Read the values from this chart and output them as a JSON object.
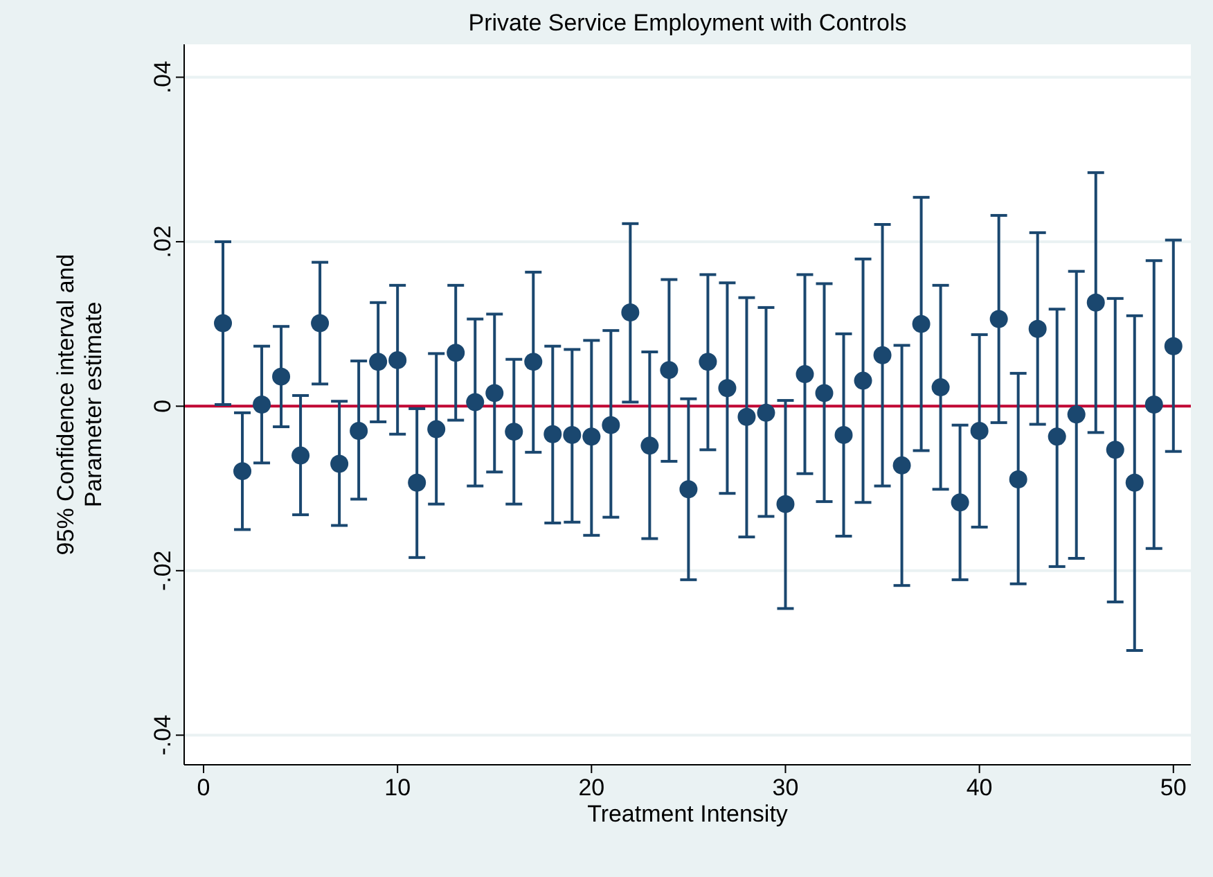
{
  "chart_data": {
    "type": "scatter",
    "title": "Private Service Employment with Controls",
    "xlabel": "Treatment Intensity",
    "ylabel": "95% Confidence interval and\nParameter estimate",
    "x": [
      1,
      2,
      3,
      4,
      5,
      6,
      7,
      8,
      9,
      10,
      11,
      12,
      13,
      14,
      15,
      16,
      17,
      18,
      19,
      20,
      21,
      22,
      23,
      24,
      25,
      26,
      27,
      28,
      29,
      30,
      31,
      32,
      33,
      34,
      35,
      36,
      37,
      38,
      39,
      40,
      41,
      42,
      43,
      44,
      45,
      46,
      47,
      48,
      49,
      50
    ],
    "series": [
      {
        "color": "#1a476f",
        "marker": "circle",
        "values": [
          0.0101,
          -0.0079,
          0.0002,
          0.0036,
          -0.006,
          0.0101,
          -0.007,
          -0.003,
          0.0054,
          0.0056,
          -0.0093,
          -0.0028,
          0.0065,
          0.0005,
          0.0016,
          -0.0031,
          0.0054,
          -0.0034,
          -0.0035,
          -0.0037,
          -0.0023,
          0.0114,
          -0.0048,
          0.0044,
          -0.0101,
          0.0054,
          0.0022,
          -0.0013,
          -0.0008,
          -0.0119,
          0.0039,
          0.0016,
          -0.0035,
          0.0031,
          0.0062,
          -0.0072,
          0.01,
          0.0023,
          -0.0117,
          -0.003,
          0.0106,
          -0.0089,
          0.0094,
          -0.0037,
          -0.001,
          0.0126,
          -0.0053,
          -0.0093,
          0.0002,
          0.0073
        ],
        "errors": [
          [
            0.0002,
            0.02
          ],
          [
            -0.015,
            -0.0008
          ],
          [
            -0.0069,
            0.0073
          ],
          [
            -0.0025,
            0.0097
          ],
          [
            -0.0132,
            0.0013
          ],
          [
            0.0027,
            0.0175
          ],
          [
            -0.0145,
            0.0006
          ],
          [
            -0.0113,
            0.0055
          ],
          [
            -0.0019,
            0.0126
          ],
          [
            -0.0034,
            0.0147
          ],
          [
            -0.0184,
            -0.0003
          ],
          [
            -0.0119,
            0.0064
          ],
          [
            -0.0017,
            0.0147
          ],
          [
            -0.0097,
            0.0106
          ],
          [
            -0.008,
            0.0112
          ],
          [
            -0.0119,
            0.0057
          ],
          [
            -0.0056,
            0.0163
          ],
          [
            -0.0142,
            0.0073
          ],
          [
            -0.0141,
            0.0069
          ],
          [
            -0.0157,
            0.008
          ],
          [
            -0.0135,
            0.0092
          ],
          [
            0.0005,
            0.0222
          ],
          [
            -0.0161,
            0.0066
          ],
          [
            -0.0067,
            0.0154
          ],
          [
            -0.0211,
            0.0009
          ],
          [
            -0.0053,
            0.016
          ],
          [
            -0.0106,
            0.015
          ],
          [
            -0.0159,
            0.0132
          ],
          [
            -0.0134,
            0.012
          ],
          [
            -0.0246,
            0.0007
          ],
          [
            -0.0082,
            0.016
          ],
          [
            -0.0116,
            0.0149
          ],
          [
            -0.0158,
            0.0088
          ],
          [
            -0.0117,
            0.0179
          ],
          [
            -0.0097,
            0.0221
          ],
          [
            -0.0218,
            0.0074
          ],
          [
            -0.0054,
            0.0254
          ],
          [
            -0.0101,
            0.0147
          ],
          [
            -0.0211,
            -0.0023
          ],
          [
            -0.0147,
            0.0087
          ],
          [
            -0.002,
            0.0232
          ],
          [
            -0.0216,
            0.004
          ],
          [
            -0.0022,
            0.0211
          ],
          [
            -0.0195,
            0.0118
          ],
          [
            -0.0185,
            0.0164
          ],
          [
            -0.0032,
            0.0284
          ],
          [
            -0.0238,
            0.0131
          ],
          [
            -0.0297,
            0.011
          ],
          [
            -0.0173,
            0.0177
          ],
          [
            -0.0055,
            0.0202
          ]
        ]
      }
    ],
    "xlim": [
      -1,
      50.9
    ],
    "xticks": [
      0,
      10,
      20,
      30,
      40,
      50
    ],
    "ylim": [
      -0.0436,
      0.044
    ],
    "yticks": [
      {
        "value": -0.04,
        "label": "-.04"
      },
      {
        "value": -0.02,
        "label": "-.02"
      },
      0,
      {
        "value": 0.02,
        "label": ".02"
      },
      {
        "value": 0.04,
        "label": ".04"
      }
    ],
    "ref_lines": [
      {
        "axis": "y",
        "value": 0,
        "color": "#c10534"
      }
    ],
    "grid": "y"
  }
}
